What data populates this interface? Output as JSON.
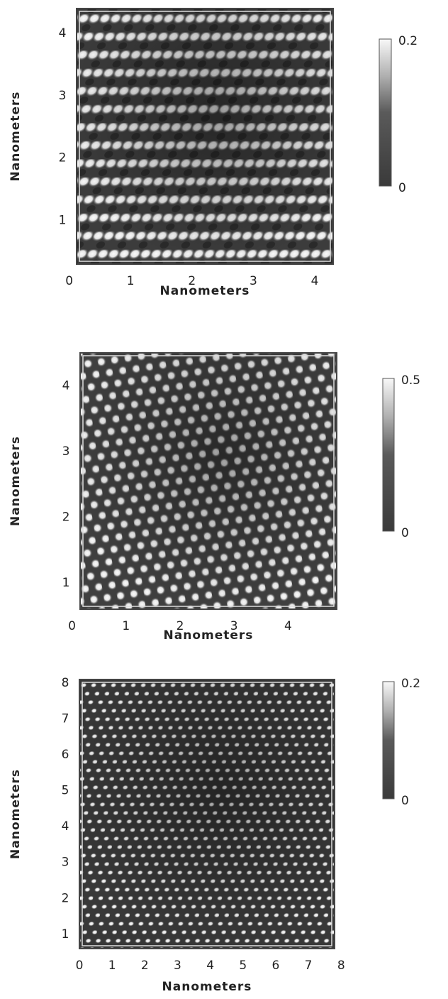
{
  "chart_data": [
    {
      "type": "image",
      "xlabel": "Nanometers",
      "ylabel": "Nanometers",
      "xlim": [
        0.12,
        4.3
      ],
      "ylim": [
        0.3,
        4.4
      ],
      "xticks": [
        0,
        1,
        2,
        3,
        4
      ],
      "yticks": [
        1,
        2,
        3,
        4
      ],
      "clim": [
        0,
        0.2
      ],
      "cticks": [
        0,
        0.2
      ]
    },
    {
      "type": "image",
      "xlabel": "Nanometers",
      "ylabel": "Nanometers",
      "xlim": [
        0.15,
        4.9
      ],
      "ylim": [
        0.6,
        4.5
      ],
      "xticks": [
        0,
        1,
        2,
        3,
        4
      ],
      "yticks": [
        1,
        2,
        3,
        4
      ],
      "clim": [
        0,
        0.5
      ],
      "cticks": [
        0,
        0.5
      ]
    },
    {
      "type": "image",
      "xlabel": "Nanometers",
      "ylabel": "Nanometers",
      "xlim": [
        0,
        7.8
      ],
      "ylim": [
        0.6,
        8.1
      ],
      "xticks": [
        0,
        1,
        2,
        3,
        4,
        5,
        6,
        7,
        8
      ],
      "yticks": [
        1,
        2,
        3,
        4,
        5,
        6,
        7,
        8
      ],
      "clim": [
        0,
        0.2
      ],
      "cticks": [
        0,
        0.2
      ]
    }
  ]
}
